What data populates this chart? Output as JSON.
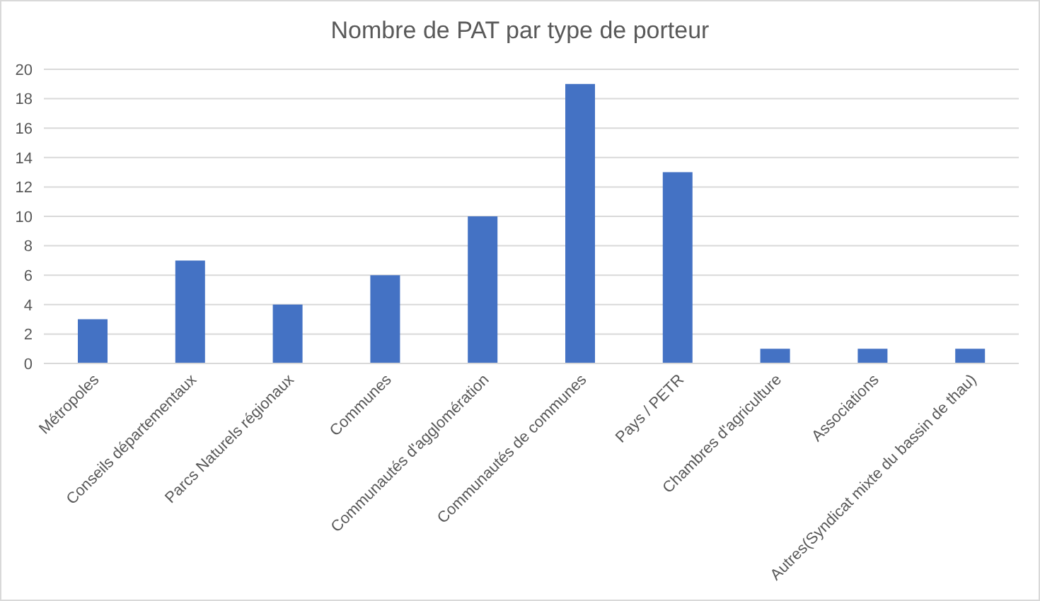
{
  "chart_data": {
    "type": "bar",
    "title": "Nombre de PAT par type de porteur",
    "categories": [
      "Métropoles",
      "Conseils départementaux",
      "Parcs Naturels régionaux",
      "Communes",
      "Communautés d'agglomération",
      "Communautés de communes",
      "Pays / PETR",
      "Chambres d'agriculture",
      "Associations",
      "Autres(Syndicat mixte du bassin de thau)"
    ],
    "values": [
      3,
      7,
      4,
      6,
      10,
      19,
      13,
      1,
      1,
      1
    ],
    "color": "#4472c4",
    "ylim": [
      0,
      20
    ],
    "yticks": [
      0,
      2,
      4,
      6,
      8,
      10,
      12,
      14,
      16,
      18,
      20
    ],
    "grid": "y"
  }
}
